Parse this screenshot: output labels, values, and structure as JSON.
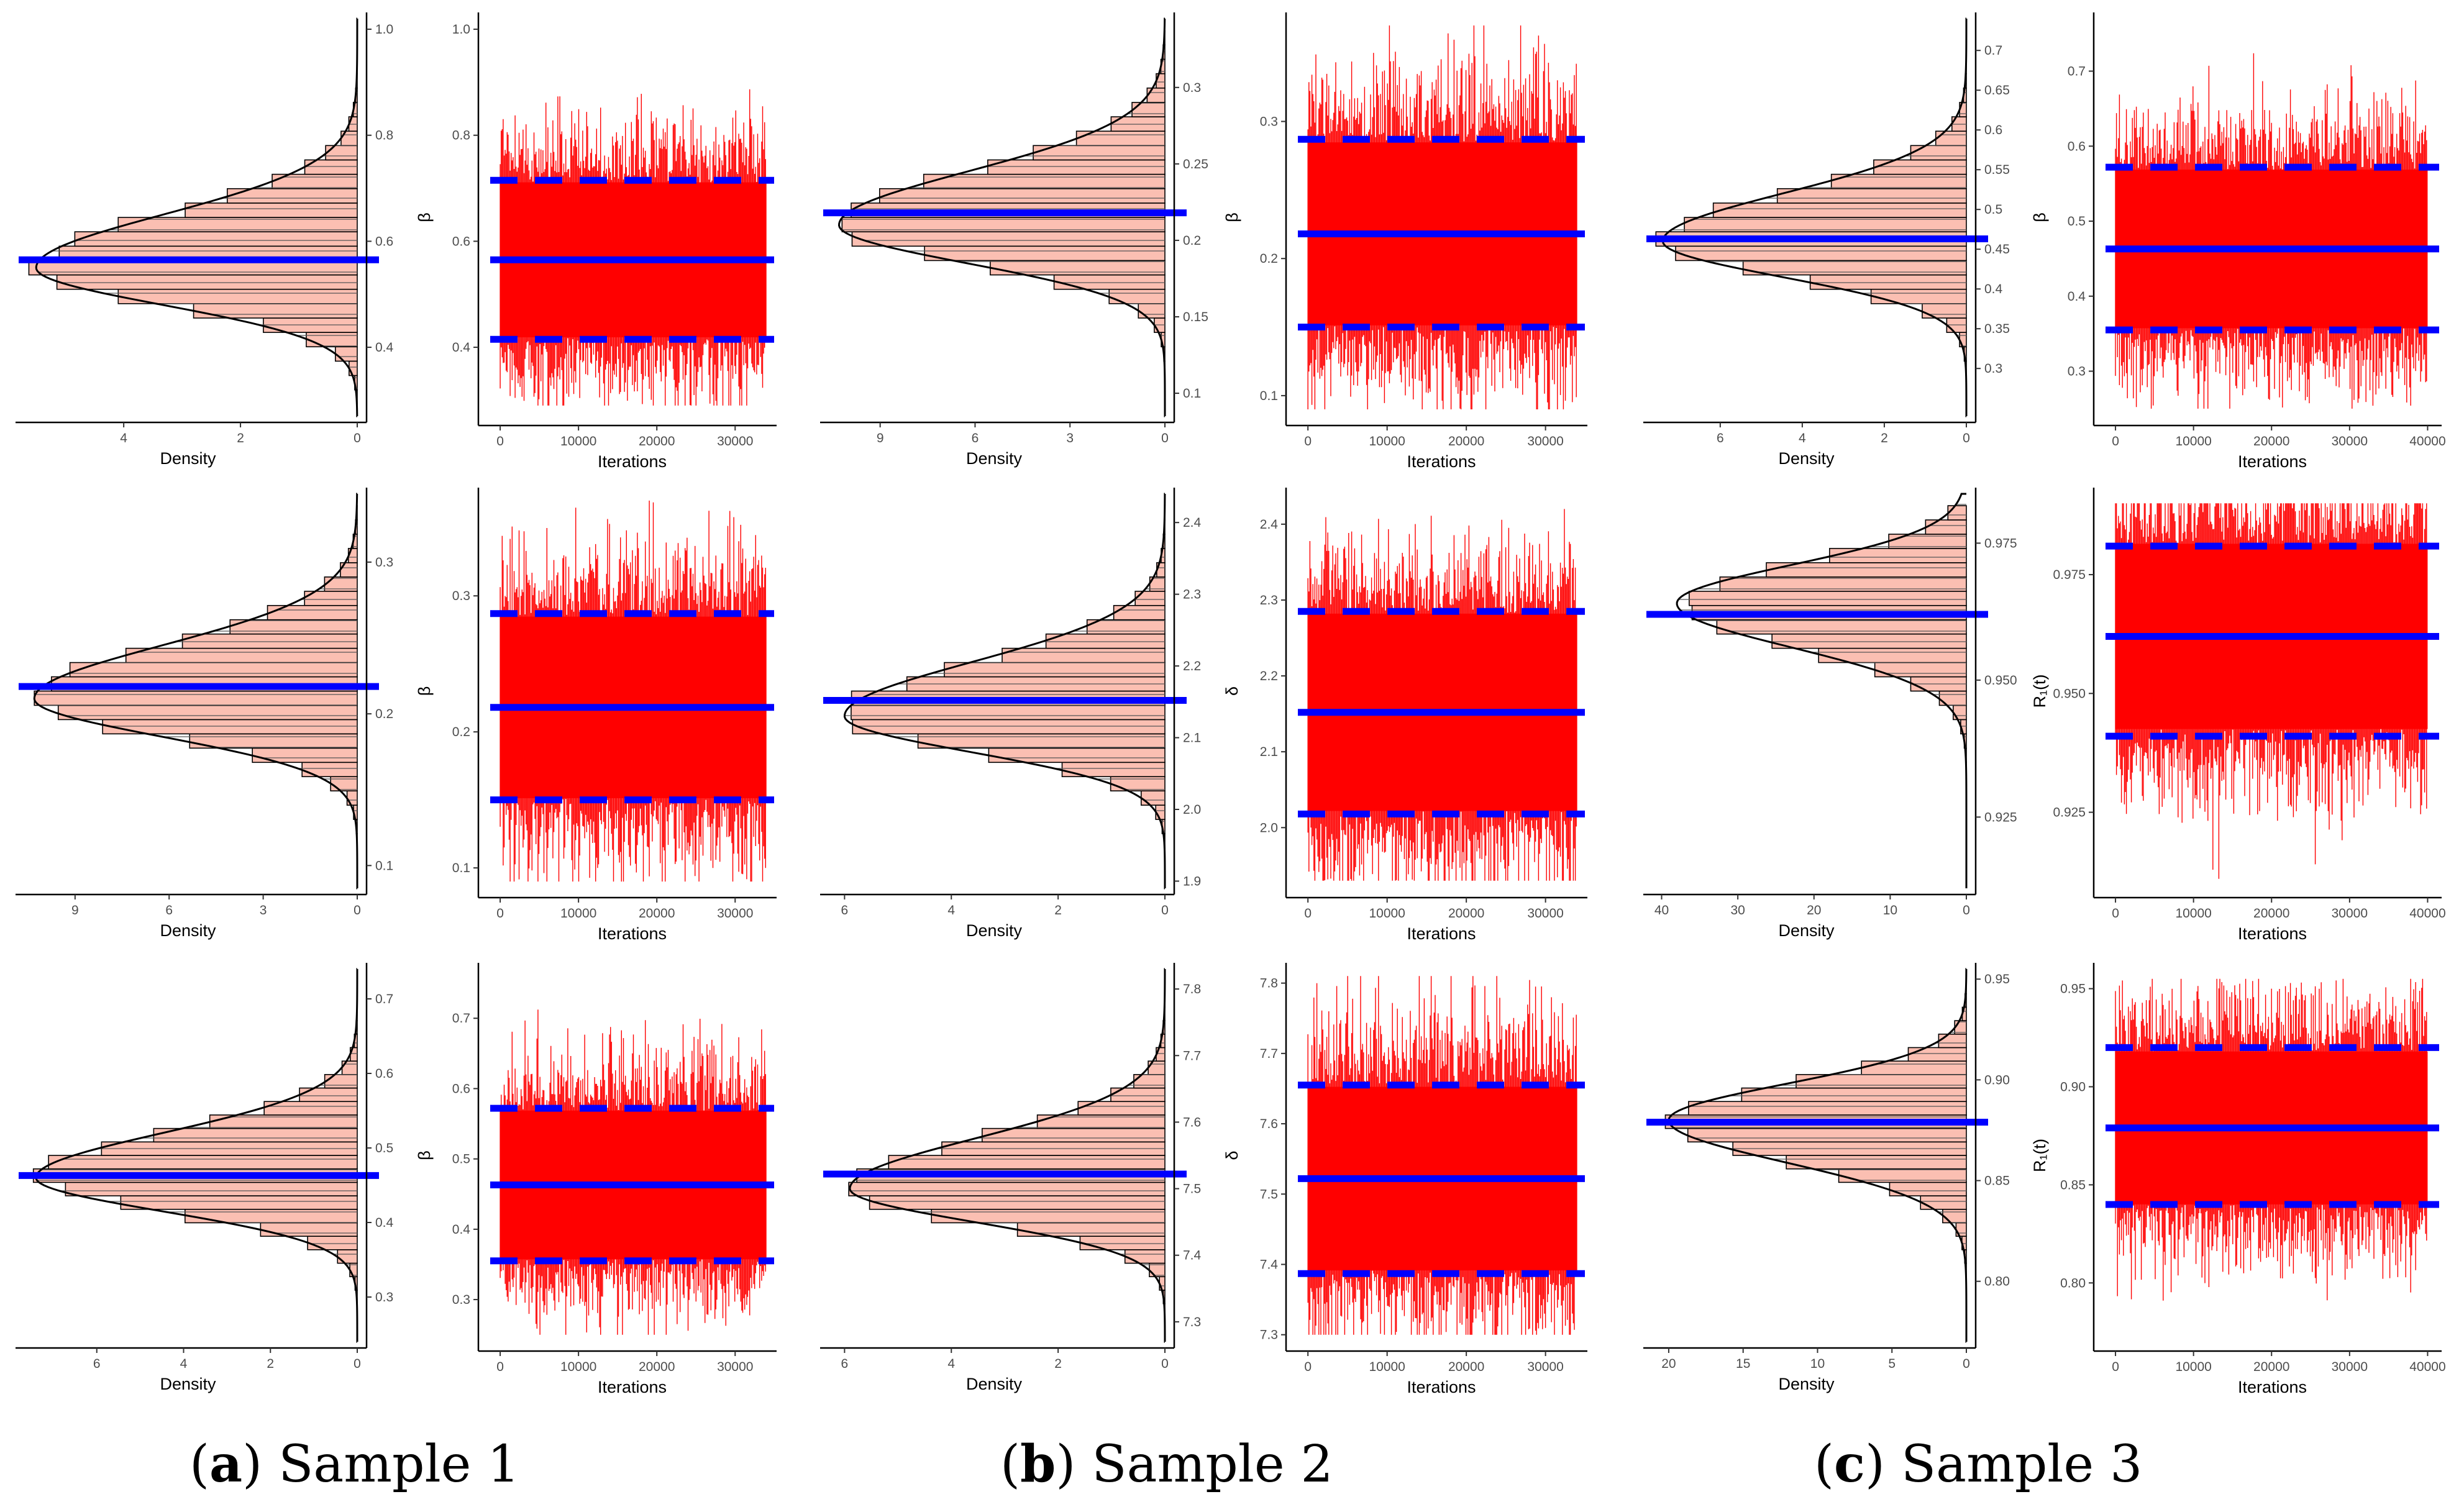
{
  "colors": {
    "trace": "#ff0000",
    "hist_fill": "#fbbfb2",
    "interval_line": "#0000ff",
    "axis": "#000000"
  },
  "captions": [
    {
      "letter": "a",
      "text": "Sample 1"
    },
    {
      "letter": "b",
      "text": "Sample 2"
    },
    {
      "letter": "c",
      "text": "Sample 3"
    }
  ],
  "chart_data": [
    {
      "type": "histogram",
      "sample": 1,
      "row": 1,
      "xlabel": "Density",
      "xticks": [
        4,
        2,
        0
      ],
      "xlim": [
        5.8,
        0
      ],
      "ylim": [
        0.27,
        1.02
      ],
      "yticks": [
        0.4,
        0.6,
        0.8,
        1.0
      ],
      "ytick_labels": [
        "0.4",
        "0.6",
        "0.8",
        "1.0"
      ],
      "mode": 0.55,
      "sd_low": 0.07,
      "sd_high": 0.1,
      "peak_density": 5.5,
      "estimate": 0.565
    },
    {
      "type": "trace",
      "sample": 1,
      "row": 1,
      "xlabel": "Iterations",
      "ylabel": "β",
      "xlim": [
        -800,
        34500
      ],
      "xticks": [
        0,
        10000,
        20000,
        30000
      ],
      "ylim": [
        0.27,
        1.02
      ],
      "yticks": [
        0.4,
        0.6,
        0.8,
        1.0
      ],
      "ytick_labels": [
        "0.4",
        "0.6",
        "0.8",
        "1.0"
      ],
      "n_iter": 34000,
      "mean": 0.565,
      "lower": 0.415,
      "upper": 0.715,
      "min": 0.29,
      "max": 0.99
    },
    {
      "type": "histogram",
      "sample": 2,
      "row": 1,
      "xlabel": "Density",
      "xticks": [
        9,
        6,
        3,
        0
      ],
      "xlim": [
        10.8,
        0
      ],
      "ylim": [
        0.085,
        0.345
      ],
      "yticks": [
        0.1,
        0.15,
        0.2,
        0.25,
        0.3
      ],
      "ytick_labels": [
        "0.1",
        "0.15",
        "0.2",
        "0.25",
        "0.3"
      ],
      "mode": 0.21,
      "sd_low": 0.025,
      "sd_high": 0.035,
      "peak_density": 10.3,
      "estimate": 0.218
    },
    {
      "type": "trace",
      "sample": 2,
      "row": 1,
      "xlabel": "Iterations",
      "ylabel": "β",
      "xlim": [
        -800,
        34500
      ],
      "xticks": [
        0,
        10000,
        20000,
        30000
      ],
      "ylim": [
        0.085,
        0.375
      ],
      "yticks": [
        0.1,
        0.2,
        0.3
      ],
      "ytick_labels": [
        "0.1",
        "0.2",
        "0.3"
      ],
      "n_iter": 34000,
      "mean": 0.218,
      "lower": 0.15,
      "upper": 0.287,
      "min": 0.09,
      "max": 0.37
    },
    {
      "type": "histogram",
      "sample": 3,
      "row": 1,
      "xlabel": "Density",
      "xticks": [
        6,
        4,
        2,
        0
      ],
      "xlim": [
        7.8,
        0
      ],
      "ylim": [
        0.24,
        0.74
      ],
      "yticks": [
        0.3,
        0.35,
        0.4,
        0.45,
        0.5,
        0.55,
        0.6,
        0.65,
        0.7
      ],
      "ytick_labels": [
        "0.3",
        "0.35",
        "0.4",
        "0.45",
        "0.5",
        "0.55",
        "0.6",
        "0.65",
        "0.7"
      ],
      "mode": 0.46,
      "sd_low": 0.045,
      "sd_high": 0.06,
      "peak_density": 7.4,
      "estimate": 0.463
    },
    {
      "type": "trace",
      "sample": 3,
      "row": 1,
      "xlabel": "Iterations",
      "ylabel": "β",
      "xlim": [
        -800,
        41000
      ],
      "xticks": [
        0,
        10000,
        20000,
        30000,
        40000
      ],
      "ylim": [
        0.24,
        0.77
      ],
      "yticks": [
        0.3,
        0.4,
        0.5,
        0.6,
        0.7
      ],
      "ytick_labels": [
        "0.3",
        "0.4",
        "0.5",
        "0.6",
        "0.7"
      ],
      "n_iter": 40000,
      "mean": 0.463,
      "lower": 0.355,
      "upper": 0.572,
      "min": 0.25,
      "max": 0.75
    },
    {
      "type": "histogram",
      "sample": 1,
      "row": 2,
      "xlabel": "Density",
      "xticks": [
        9,
        6,
        3,
        0
      ],
      "xlim": [
        10.8,
        0
      ],
      "ylim": [
        0.085,
        0.345
      ],
      "yticks": [
        0.1,
        0.2,
        0.3
      ],
      "ytick_labels": [
        "0.1",
        "0.2",
        "0.3"
      ],
      "mode": 0.21,
      "sd_low": 0.025,
      "sd_high": 0.035,
      "peak_density": 10.3,
      "estimate": 0.218
    },
    {
      "type": "trace",
      "sample": 1,
      "row": 2,
      "xlabel": "Iterations",
      "ylabel": "β",
      "xlim": [
        -800,
        34500
      ],
      "xticks": [
        0,
        10000,
        20000,
        30000
      ],
      "ylim": [
        0.085,
        0.375
      ],
      "yticks": [
        0.1,
        0.2,
        0.3
      ],
      "ytick_labels": [
        "0.1",
        "0.2",
        "0.3"
      ],
      "n_iter": 34000,
      "mean": 0.218,
      "lower": 0.15,
      "upper": 0.287,
      "min": 0.09,
      "max": 0.37
    },
    {
      "type": "histogram",
      "sample": 2,
      "row": 2,
      "xlabel": "Density",
      "xticks": [
        6,
        4,
        2,
        0
      ],
      "xlim": [
        6.4,
        0
      ],
      "ylim": [
        1.89,
        2.44
      ],
      "yticks": [
        1.9,
        2.0,
        2.1,
        2.2,
        2.3,
        2.4
      ],
      "ytick_labels": [
        "1.9",
        "2.0",
        "2.1",
        "2.2",
        "2.3",
        "2.4"
      ],
      "mode": 2.13,
      "sd_low": 0.05,
      "sd_high": 0.075,
      "peak_density": 6.0,
      "estimate": 2.152
    },
    {
      "type": "trace",
      "sample": 2,
      "row": 2,
      "xlabel": "Iterations",
      "ylabel": "δ",
      "xlim": [
        -800,
        34500
      ],
      "xticks": [
        0,
        10000,
        20000,
        30000
      ],
      "ylim": [
        1.92,
        2.44
      ],
      "yticks": [
        2.0,
        2.1,
        2.2,
        2.3,
        2.4
      ],
      "ytick_labels": [
        "2.0",
        "2.1",
        "2.2",
        "2.3",
        "2.4"
      ],
      "n_iter": 34000,
      "mean": 2.152,
      "lower": 2.018,
      "upper": 2.285,
      "min": 1.93,
      "max": 2.42
    },
    {
      "type": "histogram",
      "sample": 3,
      "row": 2,
      "xlabel": "Density",
      "xticks": [
        40,
        30,
        20,
        10,
        0
      ],
      "xlim": [
        42,
        0
      ],
      "ylim": [
        0.912,
        0.984
      ],
      "yticks": [
        0.925,
        0.95,
        0.975
      ],
      "ytick_labels": [
        "0.925",
        "0.950",
        "0.975"
      ],
      "mode": 0.964,
      "sd_low": 0.008,
      "sd_high": 0.007,
      "peak_density": 38.0,
      "estimate": 0.962
    },
    {
      "type": "trace",
      "sample": 3,
      "row": 2,
      "xlabel": "Iterations",
      "ylabel": "R₁(t)",
      "xlim": [
        -800,
        41000
      ],
      "xticks": [
        0,
        10000,
        20000,
        30000,
        40000
      ],
      "ylim": [
        0.909,
        0.992
      ],
      "yticks": [
        0.925,
        0.95,
        0.975
      ],
      "ytick_labels": [
        "0.925",
        "0.950",
        "0.975"
      ],
      "n_iter": 40000,
      "mean": 0.962,
      "lower": 0.941,
      "upper": 0.981,
      "min": 0.911,
      "max": 0.99
    },
    {
      "type": "histogram",
      "sample": 1,
      "row": 3,
      "xlabel": "Density",
      "xticks": [
        6,
        4,
        2,
        0
      ],
      "xlim": [
        7.8,
        0
      ],
      "ylim": [
        0.24,
        0.74
      ],
      "yticks": [
        0.3,
        0.4,
        0.5,
        0.6,
        0.7
      ],
      "ytick_labels": [
        "0.3",
        "0.4",
        "0.5",
        "0.6",
        "0.7"
      ],
      "mode": 0.46,
      "sd_low": 0.045,
      "sd_high": 0.06,
      "peak_density": 7.4,
      "estimate": 0.463
    },
    {
      "type": "trace",
      "sample": 1,
      "row": 3,
      "xlabel": "Iterations",
      "ylabel": "β",
      "xlim": [
        -800,
        34500
      ],
      "xticks": [
        0,
        10000,
        20000,
        30000
      ],
      "ylim": [
        0.24,
        0.77
      ],
      "yticks": [
        0.3,
        0.4,
        0.5,
        0.6,
        0.7
      ],
      "ytick_labels": [
        "0.3",
        "0.4",
        "0.5",
        "0.6",
        "0.7"
      ],
      "n_iter": 34000,
      "mean": 0.463,
      "lower": 0.355,
      "upper": 0.572,
      "min": 0.25,
      "max": 0.75
    },
    {
      "type": "histogram",
      "sample": 2,
      "row": 3,
      "xlabel": "Density",
      "xticks": [
        6,
        4,
        2,
        0
      ],
      "xlim": [
        6.4,
        0
      ],
      "ylim": [
        7.27,
        7.83
      ],
      "yticks": [
        7.3,
        7.4,
        7.5,
        7.6,
        7.7,
        7.8
      ],
      "ytick_labels": [
        "7.3",
        "7.4",
        "7.5",
        "7.6",
        "7.7",
        "7.8"
      ],
      "mode": 7.5,
      "sd_low": 0.05,
      "sd_high": 0.075,
      "peak_density": 5.9,
      "estimate": 7.522
    },
    {
      "type": "trace",
      "sample": 2,
      "row": 3,
      "xlabel": "Iterations",
      "ylabel": "δ",
      "xlim": [
        -800,
        34500
      ],
      "xticks": [
        0,
        10000,
        20000,
        30000
      ],
      "ylim": [
        7.29,
        7.82
      ],
      "yticks": [
        7.3,
        7.4,
        7.5,
        7.6,
        7.7,
        7.8
      ],
      "ytick_labels": [
        "7.3",
        "7.4",
        "7.5",
        "7.6",
        "7.7",
        "7.8"
      ],
      "n_iter": 34000,
      "mean": 7.522,
      "lower": 7.387,
      "upper": 7.655,
      "min": 7.3,
      "max": 7.81
    },
    {
      "type": "histogram",
      "sample": 3,
      "row": 3,
      "xlabel": "Density",
      "xticks": [
        20,
        15,
        10,
        5,
        0
      ],
      "xlim": [
        21.5,
        0
      ],
      "ylim": [
        0.77,
        0.955
      ],
      "yticks": [
        0.8,
        0.85,
        0.9,
        0.95
      ],
      "ytick_labels": [
        "0.80",
        "0.85",
        "0.90",
        "0.95"
      ],
      "mode": 0.88,
      "sd_low": 0.021,
      "sd_high": 0.018,
      "peak_density": 20.0,
      "estimate": 0.879
    },
    {
      "type": "trace",
      "sample": 3,
      "row": 3,
      "xlabel": "Iterations",
      "ylabel": "R₁(t)",
      "xlim": [
        -800,
        41000
      ],
      "xticks": [
        0,
        10000,
        20000,
        30000,
        40000
      ],
      "ylim": [
        0.77,
        0.96
      ],
      "yticks": [
        0.8,
        0.85,
        0.9,
        0.95
      ],
      "ytick_labels": [
        "0.80",
        "0.85",
        "0.90",
        "0.95"
      ],
      "n_iter": 40000,
      "mean": 0.879,
      "lower": 0.84,
      "upper": 0.92,
      "min": 0.775,
      "max": 0.955
    }
  ]
}
